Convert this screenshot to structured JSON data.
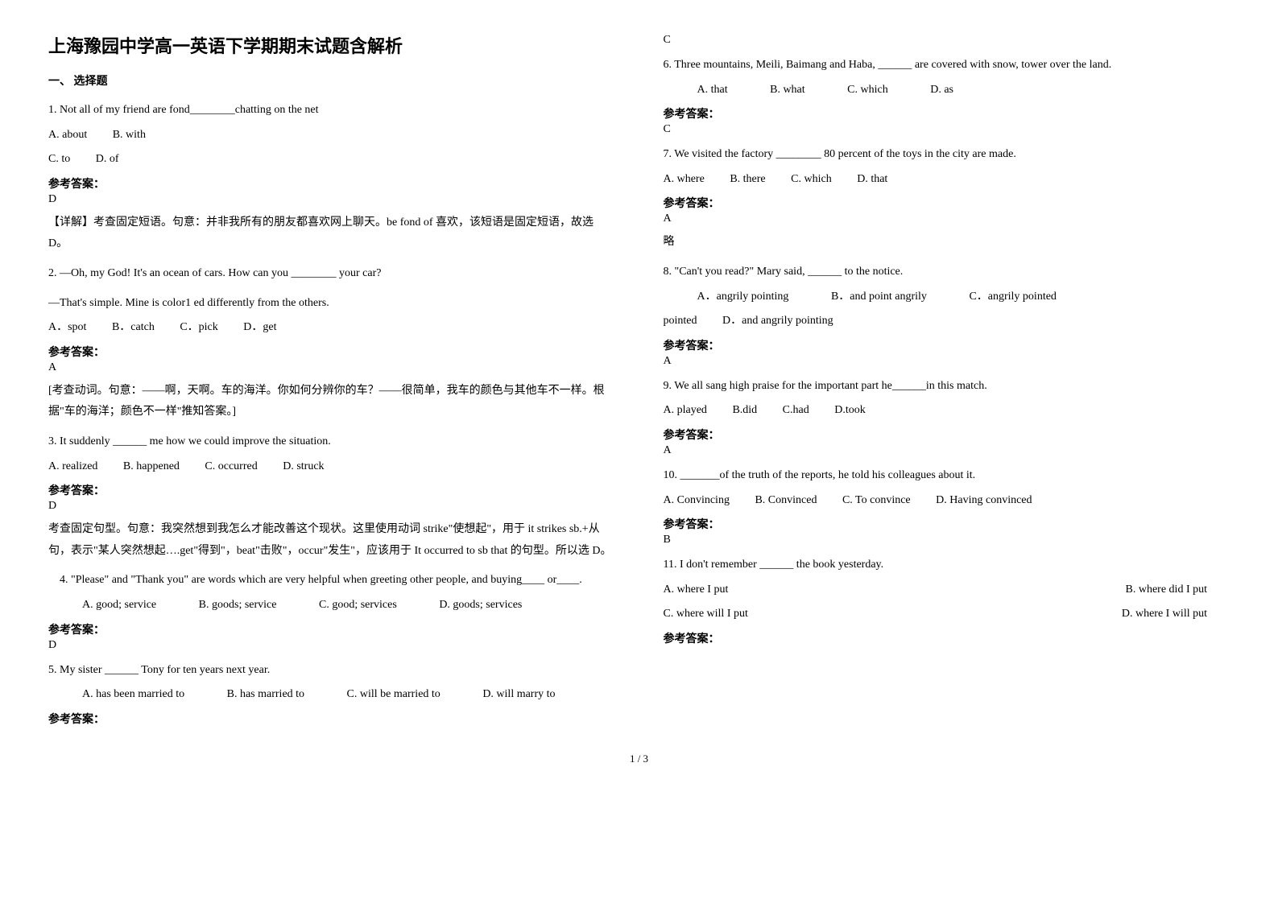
{
  "title": "上海豫园中学高一英语下学期期末试题含解析",
  "section1": "一、 选择题",
  "q1": {
    "stem": "1. Not all of my friend are fond________chatting on the net",
    "optA": "A. about",
    "optB": "B. with",
    "optC": "C. to",
    "optD": "D. of",
    "ansLabel": "参考答案：",
    "ans": "D",
    "expl": "【详解】考查固定短语。句意：并非我所有的朋友都喜欢网上聊天。be fond of 喜欢，该短语是固定短语，故选 D。"
  },
  "q2": {
    "stem1": "2. —Oh, my God! It's an ocean of cars. How can you ________ your car?",
    "stem2": "—That's simple. Mine is color1 ed differently from the others.",
    "optA": "A．spot",
    "optB": "B．catch",
    "optC": "C．pick",
    "optD": "D．get",
    "ansLabel": "参考答案：",
    "ans": "A",
    "expl": "[考查动词。句意：——啊，天啊。车的海洋。你如何分辨你的车？——很简单，我车的颜色与其他车不一样。根据\"车的海洋；颜色不一样\"推知答案。]"
  },
  "q3": {
    "stem": "3. It suddenly ______ me how we could improve the situation.",
    "optA": "A. realized",
    "optB": "B. happened",
    "optC": "C. occurred",
    "optD": "D. struck",
    "ansLabel": "参考答案：",
    "ans": "D",
    "expl": "考查固定句型。句意：我突然想到我怎么才能改善这个现状。这里使用动词 strike\"使想起\"，用于 it strikes sb.+从句，表示\"某人突然想起….get\"得到\"，beat\"击败\"，occur\"发生\"，应该用于 It occurred to sb that 的句型。所以选 D。"
  },
  "q4": {
    "stem": "　4. \"Please\" and \"Thank you\" are words which are very helpful when greeting other people, and buying____ or____.",
    "optA": "A. good; service",
    "optB": "B. goods; service",
    "optC": "C. good; services",
    "optD": "D. goods; services",
    "ansLabel": "参考答案：",
    "ans": "D"
  },
  "q5": {
    "stem": "5. My sister ______ Tony for ten years next year.",
    "optA": "A. has been married to",
    "optB": "B. has married to",
    "optC": "C. will be married to",
    "optD": "D. will marry to",
    "ansLabel": "参考答案：",
    "ans": "C"
  },
  "q6": {
    "stem": "6. Three mountains, Meili, Baimang and Haba, ______ are covered with snow, tower over the land.",
    "optA": "A. that",
    "optB": "B. what",
    "optC": "C. which",
    "optD": "D. as",
    "ansLabel": "参考答案：",
    "ans": "C"
  },
  "q7": {
    "stem": "7. We visited the factory ________ 80 percent of the toys in the city are made.",
    "optA": "A. where",
    "optB": "B. there",
    "optC": "C. which",
    "optD": "D. that",
    "ansLabel": "参考答案：",
    "ans": "A",
    "expl": "略"
  },
  "q8": {
    "stem": "8. \"Can't you read?\" Mary said, ______ to the notice.",
    "optA": "A．angrily pointing",
    "optB": "B．and point angrily",
    "optC": "C．angrily pointed",
    "optD": "D．and angrily pointing",
    "ansLabel": "参考答案：",
    "ans": "A"
  },
  "q9": {
    "stem": "9. We all sang high praise for the important part he______in this match.",
    "optA": "A. played",
    "optB": "B.did",
    "optC": "C.had",
    "optD": "D.took",
    "ansLabel": "参考答案：",
    "ans": "A"
  },
  "q10": {
    "stem": "10. _______of the truth of the reports, he told his colleagues about it.",
    "optA": "A. Convincing",
    "optB": "B. Convinced",
    "optC": "C. To convince",
    "optD": "D. Having convinced",
    "ansLabel": "参考答案：",
    "ans": "B"
  },
  "q11": {
    "stem": "11. I don't remember ______ the book yesterday.",
    "optA": "A. where I put",
    "optB": "B. where did I put",
    "optC": "C. where will I put",
    "optD": "D. where I will put",
    "ansLabel": "参考答案："
  },
  "footer": "1 / 3"
}
